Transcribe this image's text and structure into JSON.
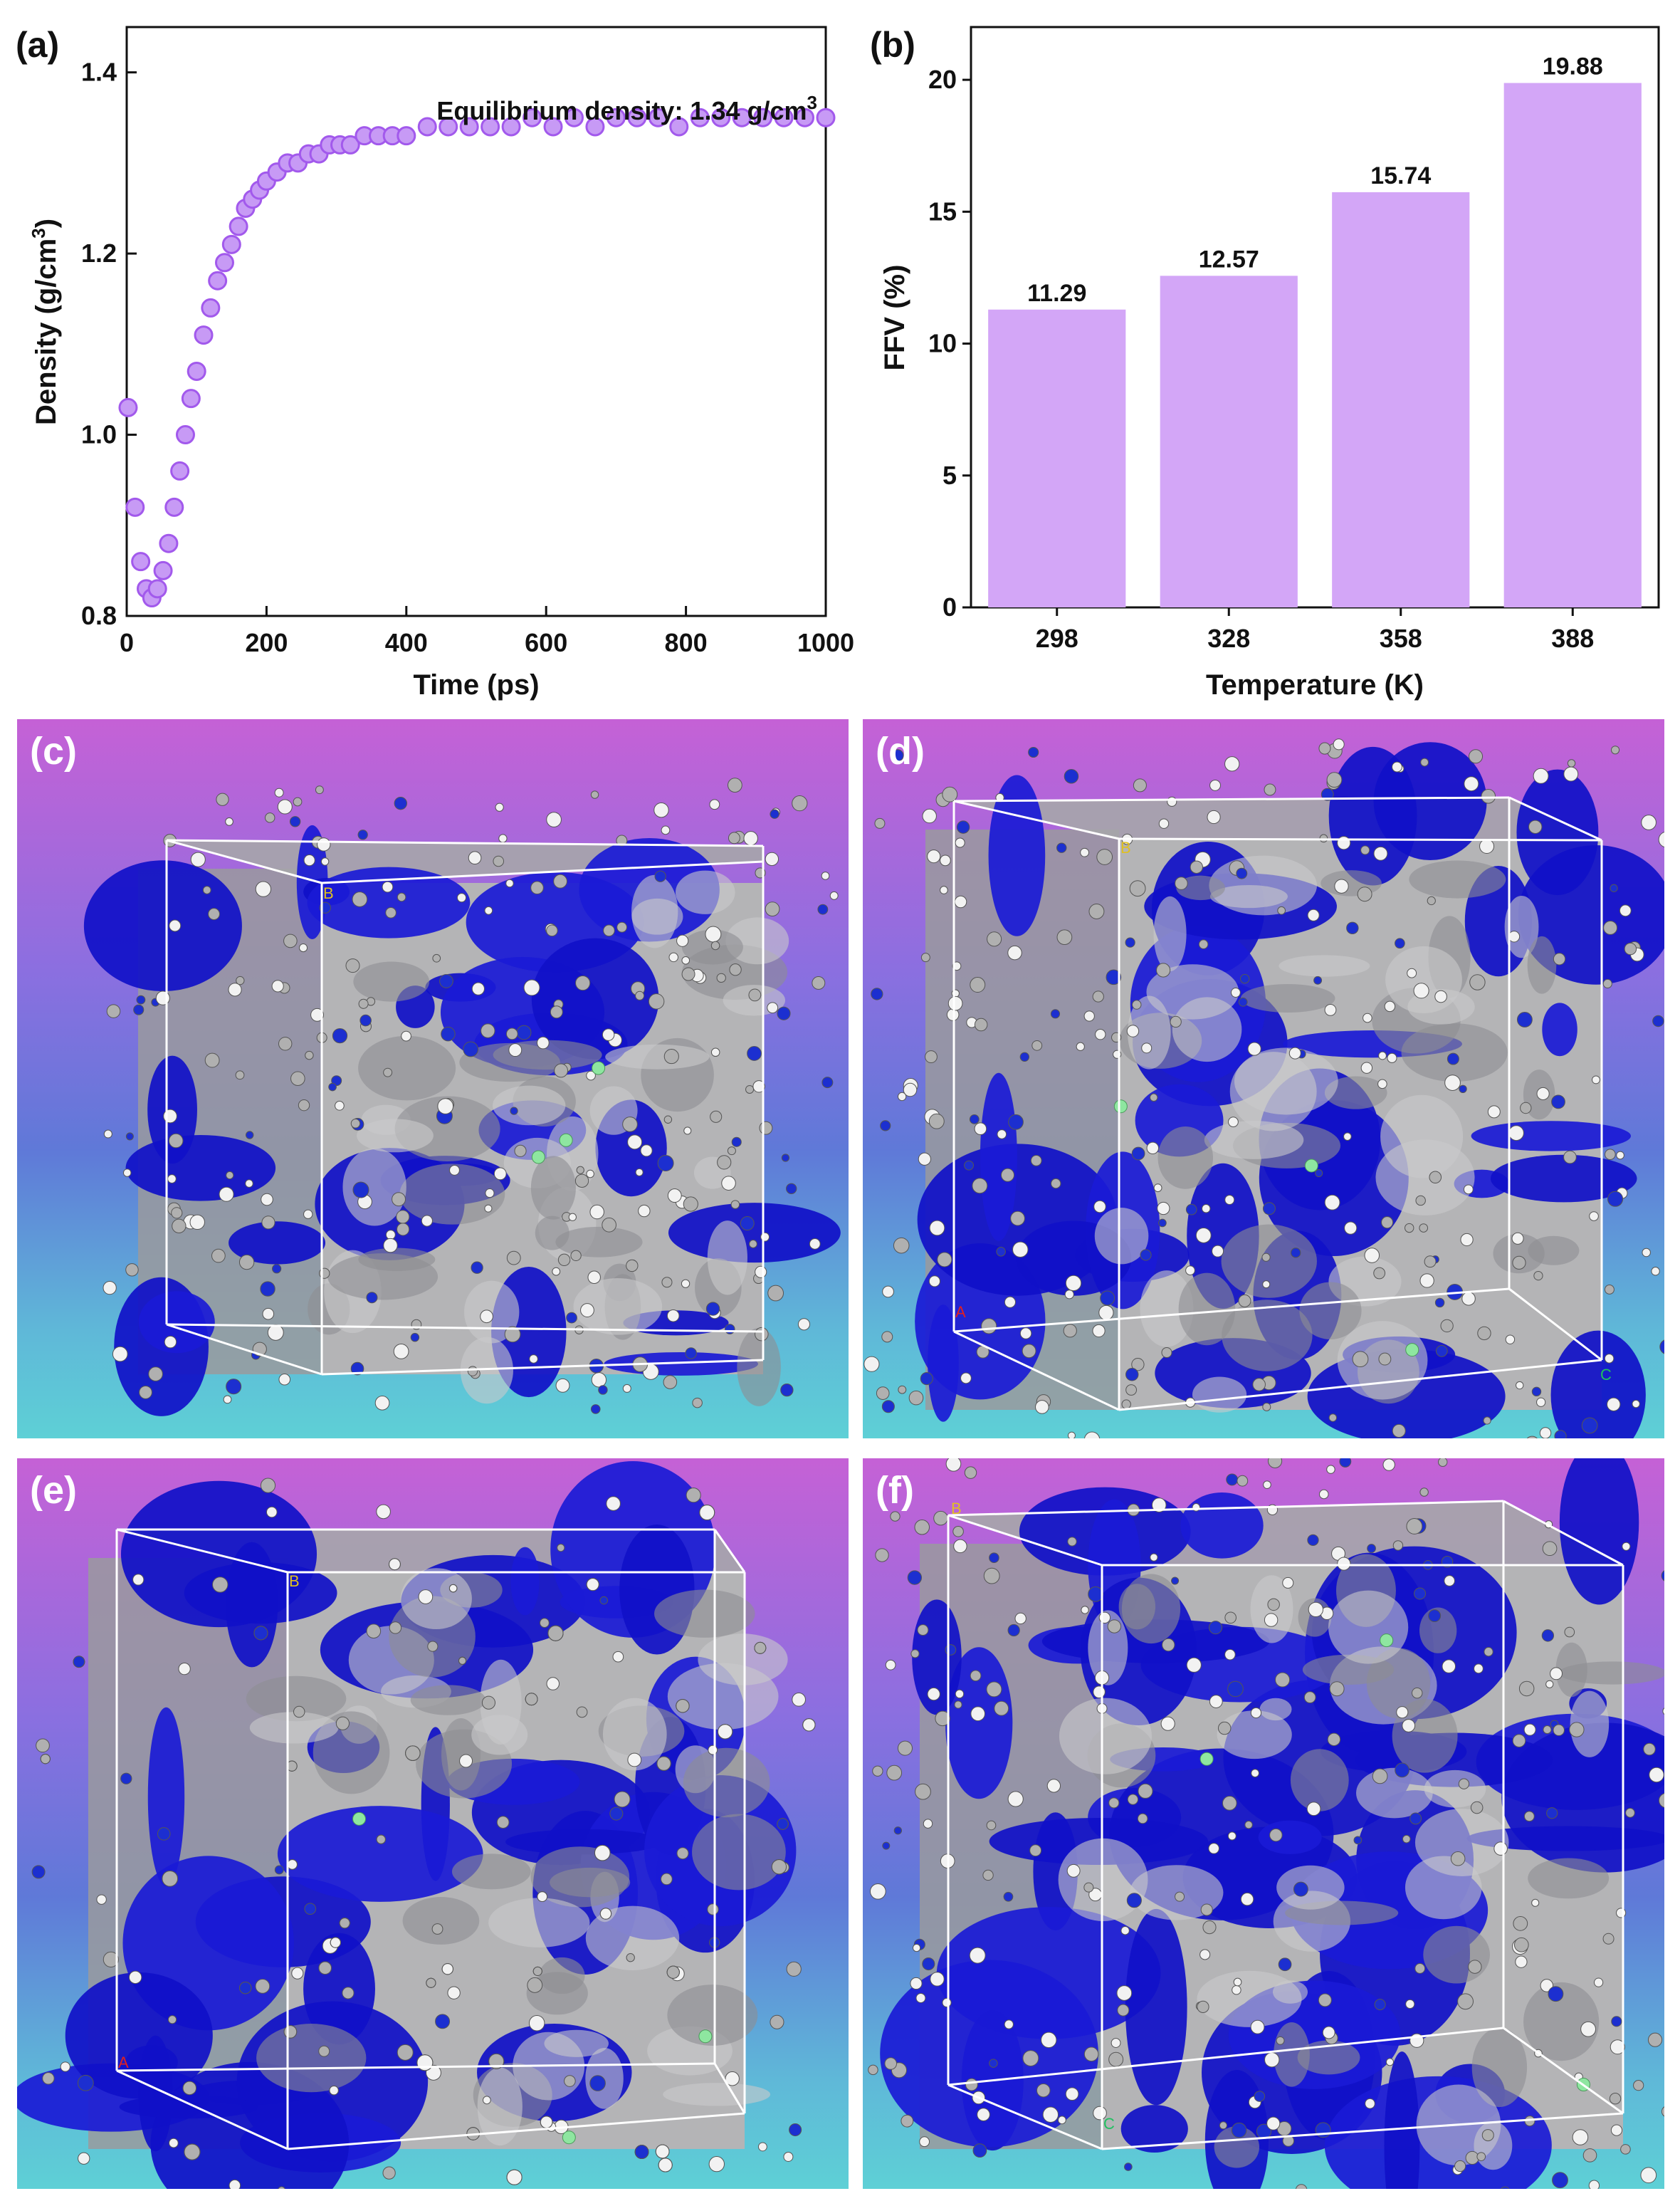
{
  "panels": {
    "a": "(a)",
    "b": "(b)",
    "c": "(c)",
    "d": "(d)",
    "e": "(e)",
    "f": "(f)"
  },
  "chart_data": [
    {
      "id": "a",
      "type": "scatter",
      "title": "",
      "xlabel": "Time (ps)",
      "ylabel": "Density (g/cm3)",
      "xlim": [
        0,
        1000
      ],
      "ylim": [
        0.8,
        1.45
      ],
      "xticks": [
        0,
        200,
        400,
        600,
        800,
        1000
      ],
      "yticks": [
        0.8,
        1.0,
        1.2,
        1.4
      ],
      "annotation": "Equilibrium density: 1.34 g/cm3",
      "marker_color": "#a259ec",
      "x": [
        2,
        12,
        20,
        28,
        36,
        44,
        52,
        60,
        68,
        76,
        84,
        92,
        100,
        110,
        120,
        130,
        140,
        150,
        160,
        170,
        180,
        190,
        200,
        215,
        230,
        245,
        260,
        275,
        290,
        305,
        320,
        340,
        360,
        380,
        400,
        430,
        460,
        490,
        520,
        550,
        580,
        610,
        640,
        670,
        700,
        730,
        760,
        790,
        820,
        850,
        880,
        910,
        940,
        970,
        1000
      ],
      "y": [
        1.03,
        0.92,
        0.86,
        0.83,
        0.82,
        0.83,
        0.85,
        0.88,
        0.92,
        0.96,
        1.0,
        1.04,
        1.07,
        1.11,
        1.14,
        1.17,
        1.19,
        1.21,
        1.23,
        1.25,
        1.26,
        1.27,
        1.28,
        1.29,
        1.3,
        1.3,
        1.31,
        1.31,
        1.32,
        1.32,
        1.32,
        1.33,
        1.33,
        1.33,
        1.33,
        1.34,
        1.34,
        1.34,
        1.34,
        1.34,
        1.35,
        1.34,
        1.35,
        1.34,
        1.35,
        1.35,
        1.35,
        1.34,
        1.35,
        1.35,
        1.35,
        1.35,
        1.35,
        1.35,
        1.35
      ]
    },
    {
      "id": "b",
      "type": "bar",
      "title": "",
      "xlabel": "Temperature (K)",
      "ylabel": "FFV (%)",
      "categories": [
        "298",
        "328",
        "358",
        "388"
      ],
      "values": [
        11.29,
        12.57,
        15.74,
        19.88
      ],
      "value_labels": [
        "11.29",
        "12.57",
        "15.74",
        "19.88"
      ],
      "ylim": [
        0,
        22
      ],
      "yticks": [
        0,
        5,
        10,
        15,
        20
      ],
      "bar_color": "#d3a6f7"
    }
  ],
  "simulation_boxes": [
    {
      "id": "c",
      "corner_labels": [
        "B"
      ]
    },
    {
      "id": "d",
      "corner_labels": [
        "B",
        "A",
        "C"
      ]
    },
    {
      "id": "e",
      "corner_labels": [
        "B",
        "A"
      ]
    },
    {
      "id": "f",
      "corner_labels": [
        "B",
        "C"
      ]
    }
  ]
}
